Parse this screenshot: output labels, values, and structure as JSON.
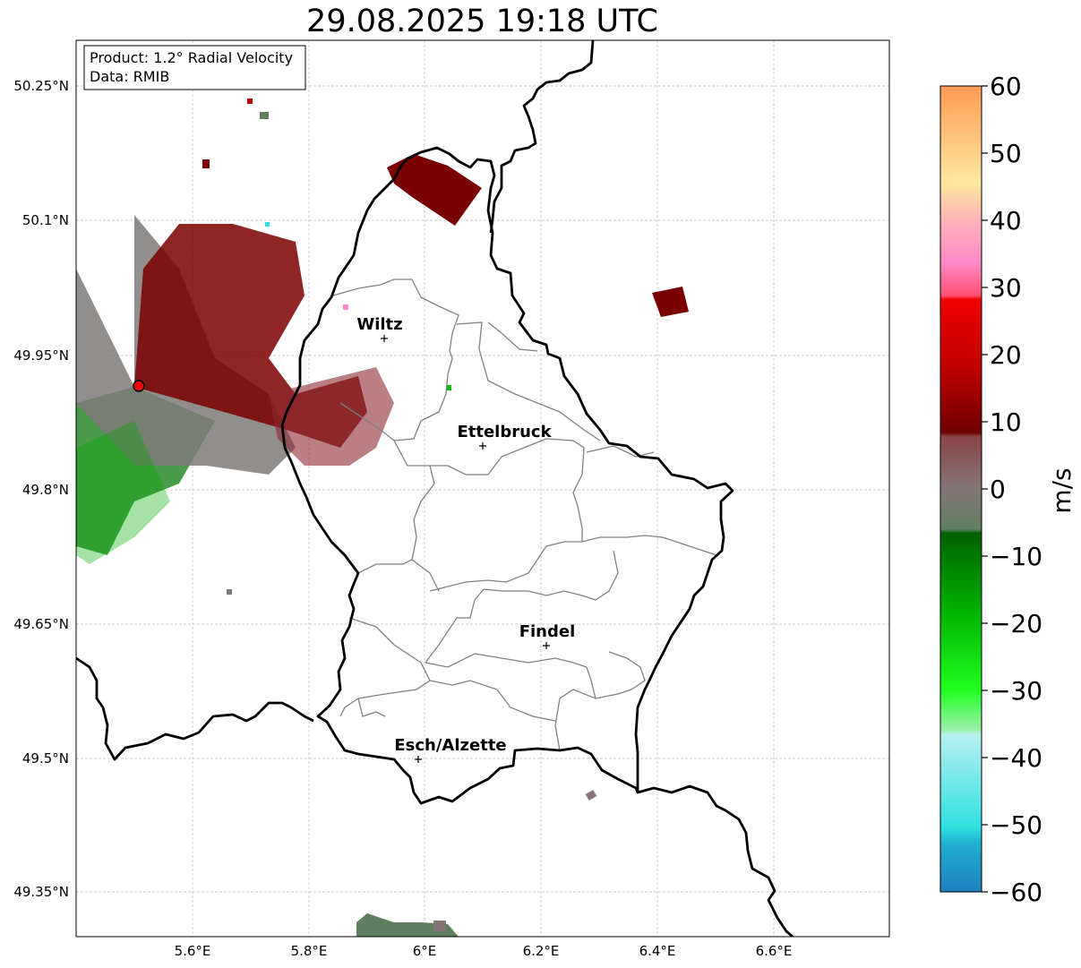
{
  "title": "29.08.2025 19:18 UTC",
  "info_box": {
    "product": "Product: 1.2° Radial Velocity",
    "data": "Data: RMIB"
  },
  "axes": {
    "lon_ticks": [
      "5.6°E",
      "5.8°E",
      "6°E",
      "6.2°E",
      "6.4°E",
      "6.6°E"
    ],
    "lat_ticks": [
      "50.25°N",
      "50.1°N",
      "49.95°N",
      "49.8°N",
      "49.65°N",
      "49.5°N",
      "49.35°N"
    ]
  },
  "cities": [
    {
      "name": "Wiltz",
      "lon": 5.93,
      "lat": 49.97
    },
    {
      "name": "Ettelbruck",
      "lon": 6.1,
      "lat": 49.85
    },
    {
      "name": "Findel",
      "lon": 6.21,
      "lat": 49.63
    },
    {
      "name": "Esch/Alzette",
      "lon": 5.99,
      "lat": 49.5
    }
  ],
  "radar_site": {
    "lon": 5.51,
    "lat": 49.91,
    "color": "#e8000b"
  },
  "colorbar": {
    "label": "m/s",
    "min": -60,
    "max": 60,
    "ticks": [
      "60",
      "50",
      "40",
      "30",
      "20",
      "10",
      "0",
      "−10",
      "−20",
      "−30",
      "−40",
      "−50",
      "−60"
    ],
    "colors": {
      "orange": "#ffa060",
      "pink": "#ff8cc8",
      "red": "#e8000b",
      "dark_red": "#7a0000",
      "gray_brown": "#857676",
      "gray_green": "#5f7f5f",
      "dark_green": "#006400",
      "green": "#00e000",
      "light_cyan": "#b0eef0",
      "cyan": "#30e0e0",
      "blue": "#1f7fc0"
    }
  }
}
